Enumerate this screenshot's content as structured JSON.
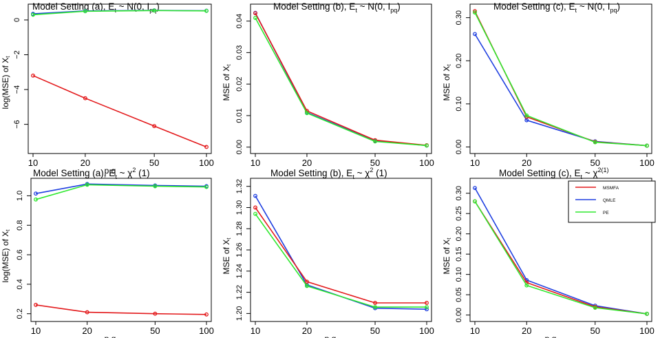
{
  "legend": {
    "items": [
      {
        "label": "MSMFA",
        "color": "#e31a1c"
      },
      {
        "label": "QMLE",
        "color": "#1f3fe0"
      },
      {
        "label": "PE",
        "color": "#2ee82e"
      }
    ]
  },
  "chart_data": [
    {
      "type": "line",
      "title_main": "Model Setting (a),  E",
      "title_sub": "t",
      "title_tail": " ~  N(0, I",
      "title_sub2": "pq",
      "title_end": ")",
      "xlabel": "p,q",
      "ylabel_main": "log(MSE) of X",
      "ylabel_sub": "t",
      "x": [
        10,
        20,
        50,
        100
      ],
      "xticks": [
        "10",
        "20",
        "50",
        "100"
      ],
      "ylim": [
        -7.4,
        0.75
      ],
      "yticks": [
        0,
        -2,
        -4,
        -6
      ],
      "ytick_labels": [
        "0",
        "−2",
        "−4",
        "−6"
      ],
      "series": [
        {
          "name": "MSMFA",
          "values": [
            -3.2,
            -4.5,
            -6.1,
            -7.3
          ]
        },
        {
          "name": "QMLE",
          "values": [
            0.35,
            0.52,
            0.55,
            0.53
          ]
        },
        {
          "name": "PE",
          "values": [
            0.3,
            0.5,
            0.54,
            0.52
          ]
        }
      ]
    },
    {
      "type": "line",
      "title_main": "Model Setting (b),  E",
      "title_sub": "t",
      "title_tail": " ~  N(0, I",
      "title_sub2": "pq",
      "title_end": ")",
      "xlabel": "",
      "ylabel_main": "MSE of X",
      "ylabel_sub": "t",
      "x": [
        10,
        20,
        50,
        100
      ],
      "xticks": [
        "10",
        "20",
        "50",
        "100"
      ],
      "ylim": [
        -0.0005,
        0.0445
      ],
      "yticks": [
        0.0,
        0.01,
        0.02,
        0.03,
        0.04
      ],
      "ytick_labels": [
        "0.00",
        "0.01",
        "0.02",
        "0.03",
        "0.04"
      ],
      "series": [
        {
          "name": "MSMFA",
          "values": [
            0.0425,
            0.0115,
            0.0022,
            0.0006
          ]
        },
        {
          "name": "QMLE",
          "values": [
            0.0426,
            0.011,
            0.002,
            0.0005
          ]
        },
        {
          "name": "PE",
          "values": [
            0.041,
            0.0108,
            0.0018,
            0.0005
          ]
        }
      ]
    },
    {
      "type": "line",
      "title_main": "Model Setting (c),  E",
      "title_sub": "t",
      "title_tail": " ~  N(0, I",
      "title_sub2": "pq",
      "title_end": ")",
      "xlabel": "",
      "ylabel_main": "MSE of X",
      "ylabel_sub": "t",
      "x": [
        10,
        20,
        50,
        100
      ],
      "xticks": [
        "10",
        "20",
        "50",
        "100"
      ],
      "ylim": [
        -0.004,
        0.325
      ],
      "yticks": [
        0.0,
        0.1,
        0.2,
        0.3
      ],
      "ytick_labels": [
        "0.00",
        "0.10",
        "0.20",
        "0.30"
      ],
      "series": [
        {
          "name": "MSMFA",
          "values": [
            0.315,
            0.07,
            0.012,
            0.003
          ]
        },
        {
          "name": "QMLE",
          "values": [
            0.262,
            0.062,
            0.013,
            0.003
          ]
        },
        {
          "name": "PE",
          "values": [
            0.312,
            0.073,
            0.011,
            0.003
          ]
        }
      ]
    },
    {
      "type": "line",
      "title_main": "Model Setting (a),  E",
      "title_sub": "t",
      "title_tail": " ~  χ",
      "title_sup": "2",
      "title_end": " (1)",
      "xlabel": "p,q",
      "ylabel_main": "log(MSE) of X",
      "ylabel_sub": "t",
      "x": [
        10,
        20,
        50,
        100
      ],
      "xticks": [
        "10",
        "20",
        "50",
        "100"
      ],
      "ylim": [
        0.18,
        1.1
      ],
      "yticks": [
        0.2,
        0.4,
        0.6,
        0.8,
        1.0
      ],
      "ytick_labels": [
        "0.2",
        "0.4",
        "0.6",
        "0.8",
        "1.0"
      ],
      "series": [
        {
          "name": "MSMFA",
          "values": [
            0.26,
            0.21,
            0.2,
            0.195
          ]
        },
        {
          "name": "QMLE",
          "values": [
            1.015,
            1.08,
            1.07,
            1.065
          ]
        },
        {
          "name": "PE",
          "values": [
            0.975,
            1.075,
            1.065,
            1.06
          ]
        }
      ]
    },
    {
      "type": "line",
      "title_main": "Model Setting (b),  E",
      "title_sub": "t",
      "title_tail": " ~  χ",
      "title_sup": "2",
      "title_end": " (1)",
      "xlabel": "p,q",
      "ylabel_main": "MSE of X",
      "ylabel_sub": "t",
      "x": [
        10,
        20,
        50,
        100
      ],
      "xticks": [
        "10",
        "20",
        "50",
        "100"
      ],
      "ylim": [
        1.197,
        1.325
      ],
      "yticks": [
        1.2,
        1.22,
        1.24,
        1.26,
        1.28,
        1.3,
        1.32
      ],
      "ytick_labels": [
        "1.20",
        "1.22",
        "1.24",
        "1.26",
        "1.28",
        "1.30",
        "1.32"
      ],
      "series": [
        {
          "name": "MSMFA",
          "values": [
            1.3,
            1.23,
            1.21,
            1.21
          ]
        },
        {
          "name": "QMLE",
          "values": [
            1.311,
            1.227,
            1.205,
            1.204
          ]
        },
        {
          "name": "PE",
          "values": [
            1.294,
            1.226,
            1.206,
            1.206
          ]
        }
      ]
    },
    {
      "type": "line",
      "title_main": "Model Setting (c),  E",
      "title_sub": "t",
      "title_tail": " ~  χ",
      "title_sup": "2(1)",
      "title_end": "",
      "xlabel": "p,q",
      "ylabel_main": "MSE of X",
      "ylabel_sub": "t",
      "x": [
        10,
        20,
        50,
        100
      ],
      "xticks": [
        "10",
        "20",
        "50",
        "100"
      ],
      "ylim": [
        -0.004,
        0.33
      ],
      "yticks": [
        0.0,
        0.05,
        0.1,
        0.15,
        0.2,
        0.25,
        0.3
      ],
      "ytick_labels": [
        "0.00",
        "0.05",
        "0.10",
        "0.15",
        "0.20",
        "0.25",
        "0.30"
      ],
      "series": [
        {
          "name": "MSMFA",
          "values": [
            0.28,
            0.08,
            0.02,
            0.003
          ]
        },
        {
          "name": "QMLE",
          "values": [
            0.313,
            0.086,
            0.023,
            0.003
          ]
        },
        {
          "name": "PE",
          "values": [
            0.28,
            0.073,
            0.018,
            0.003
          ]
        }
      ]
    }
  ]
}
